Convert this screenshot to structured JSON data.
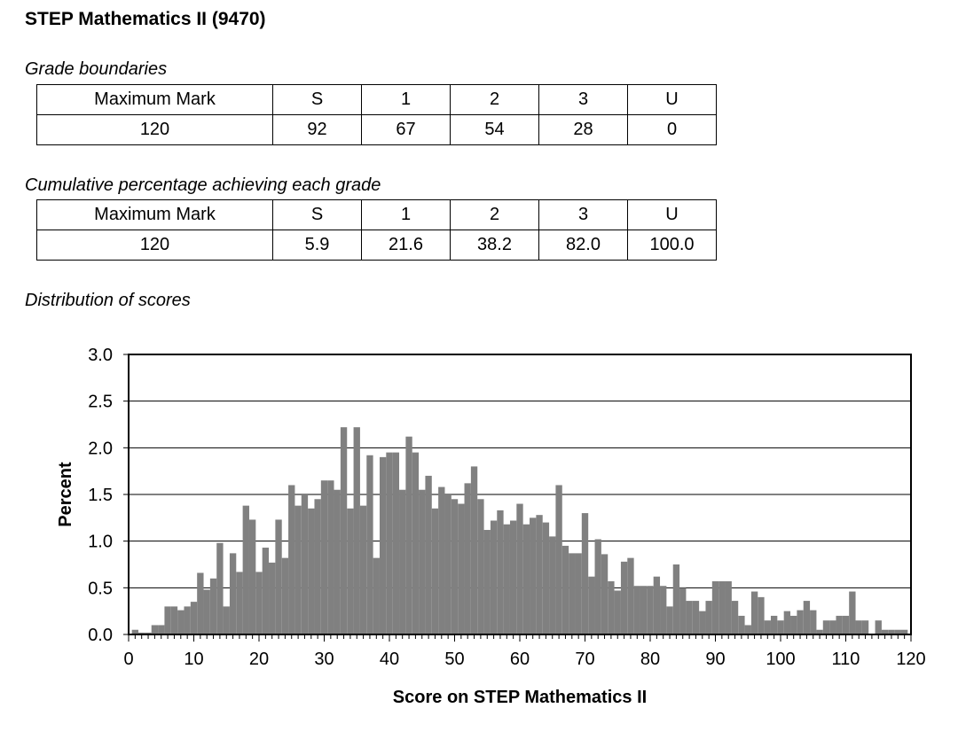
{
  "title": "STEP Mathematics II (9470)",
  "grade_boundaries": {
    "caption": "Grade boundaries",
    "headers": [
      "Maximum Mark",
      "S",
      "1",
      "2",
      "3",
      "U"
    ],
    "values": [
      "120",
      "92",
      "67",
      "54",
      "28",
      "0"
    ]
  },
  "cumulative": {
    "caption": "Cumulative percentage achieving each grade",
    "headers": [
      "Maximum Mark",
      "S",
      "1",
      "2",
      "3",
      "U"
    ],
    "values": [
      "120",
      "5.9",
      "21.6",
      "38.2",
      "82.0",
      "100.0"
    ]
  },
  "distribution_caption": "Distribution of scores",
  "chart_data": {
    "type": "bar",
    "xlabel": "Score on STEP Mathematics II",
    "ylabel": "Percent",
    "xlim": [
      0,
      120
    ],
    "ylim": [
      0,
      3.0
    ],
    "x_ticks": [
      0,
      10,
      20,
      30,
      40,
      50,
      60,
      70,
      80,
      90,
      100,
      110,
      120
    ],
    "y_ticks": [
      "0.0",
      "0.5",
      "1.0",
      "1.5",
      "2.0",
      "2.5",
      "3.0"
    ],
    "grid": true,
    "bar_color": "#808080",
    "x": [
      0,
      1,
      2,
      3,
      4,
      5,
      6,
      7,
      8,
      9,
      10,
      11,
      12,
      13,
      14,
      15,
      16,
      17,
      18,
      19,
      20,
      21,
      22,
      23,
      24,
      25,
      26,
      27,
      28,
      29,
      30,
      31,
      32,
      33,
      34,
      35,
      36,
      37,
      38,
      39,
      40,
      41,
      42,
      43,
      44,
      45,
      46,
      47,
      48,
      49,
      50,
      51,
      52,
      53,
      54,
      55,
      56,
      57,
      58,
      59,
      60,
      61,
      62,
      63,
      64,
      65,
      66,
      67,
      68,
      69,
      70,
      71,
      72,
      73,
      74,
      75,
      76,
      77,
      78,
      79,
      80,
      81,
      82,
      83,
      84,
      85,
      86,
      87,
      88,
      89,
      90,
      91,
      92,
      93,
      94,
      95,
      96,
      97,
      98,
      99,
      100,
      101,
      102,
      103,
      104,
      105,
      106,
      107,
      108,
      109,
      110,
      111,
      112,
      113,
      114,
      115,
      116,
      117,
      118,
      119,
      120
    ],
    "values": [
      0.0,
      0.05,
      0.02,
      0.02,
      0.1,
      0.1,
      0.3,
      0.3,
      0.26,
      0.3,
      0.35,
      0.66,
      0.48,
      0.6,
      0.98,
      0.3,
      0.87,
      0.67,
      1.38,
      1.23,
      0.67,
      0.93,
      0.77,
      1.23,
      0.82,
      1.6,
      1.38,
      1.5,
      1.35,
      1.45,
      1.65,
      1.65,
      1.55,
      2.22,
      1.35,
      2.22,
      1.38,
      1.92,
      0.82,
      1.9,
      1.95,
      1.95,
      1.55,
      2.12,
      1.95,
      1.55,
      1.7,
      1.35,
      1.58,
      1.5,
      1.45,
      1.4,
      1.62,
      1.8,
      1.45,
      1.12,
      1.22,
      1.33,
      1.18,
      1.22,
      1.4,
      1.18,
      1.25,
      1.28,
      1.2,
      1.05,
      1.6,
      0.95,
      0.87,
      0.87,
      1.3,
      0.62,
      1.02,
      0.86,
      0.57,
      0.47,
      0.78,
      0.82,
      0.52,
      0.52,
      0.52,
      0.62,
      0.52,
      0.3,
      0.75,
      0.5,
      0.36,
      0.36,
      0.25,
      0.36,
      0.57,
      0.57,
      0.57,
      0.36,
      0.2,
      0.1,
      0.46,
      0.4,
      0.15,
      0.2,
      0.15,
      0.25,
      0.2,
      0.26,
      0.36,
      0.26,
      0.05,
      0.15,
      0.15,
      0.2,
      0.2,
      0.46,
      0.15,
      0.15,
      0.0,
      0.15,
      0.05,
      0.05,
      0.05,
      0.05,
      0.0
    ]
  }
}
